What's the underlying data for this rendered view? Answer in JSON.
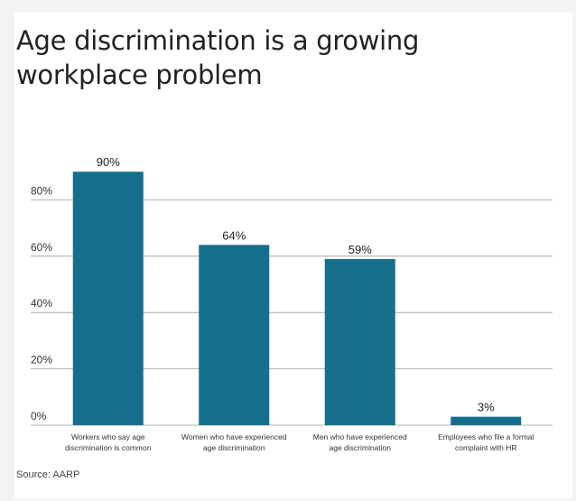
{
  "source": "Source: AARP",
  "colors": {
    "bar": "#156f8c",
    "grid": "#9a9a9a",
    "text": "#222222",
    "background": "#ffffff"
  },
  "chart_data": {
    "type": "bar",
    "title": "Age discrimination is a growing workplace problem",
    "categories": [
      [
        "Workers who say age",
        "discrimination is common"
      ],
      [
        "Women who have experienced",
        "age discrimination"
      ],
      [
        "Men who have experienced",
        "age discrimination"
      ],
      [
        "Employees who file a formal",
        "complaint with HR"
      ]
    ],
    "values": [
      90,
      64,
      59,
      3
    ],
    "value_labels": [
      "90%",
      "64%",
      "59%",
      "3%"
    ],
    "yticks": [
      0,
      20,
      40,
      60,
      80
    ],
    "ytick_labels": [
      "0%",
      "20%",
      "40%",
      "60%",
      "80%"
    ],
    "ylim": [
      0,
      100
    ],
    "xlabel": "",
    "ylabel": "",
    "grid": true,
    "legend": "none"
  }
}
